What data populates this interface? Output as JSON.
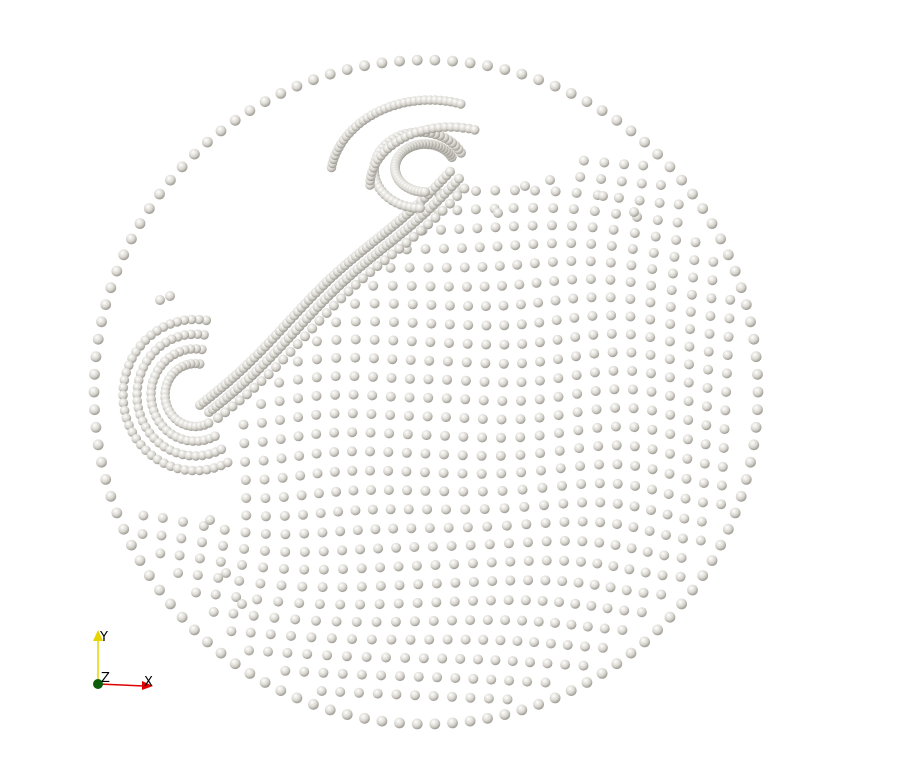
{
  "scene": {
    "type": "particle-simulation-render",
    "background_color": "#ffffff",
    "particle_color": "#d9d6cf",
    "particle_shade_color": "#8f8c86"
  },
  "axes": {
    "y_label": "Y",
    "z_label": "Z",
    "x_label": "X",
    "y_color": "#e6d400",
    "x_color": "#e00000",
    "origin_color": "#0b5d0b"
  }
}
